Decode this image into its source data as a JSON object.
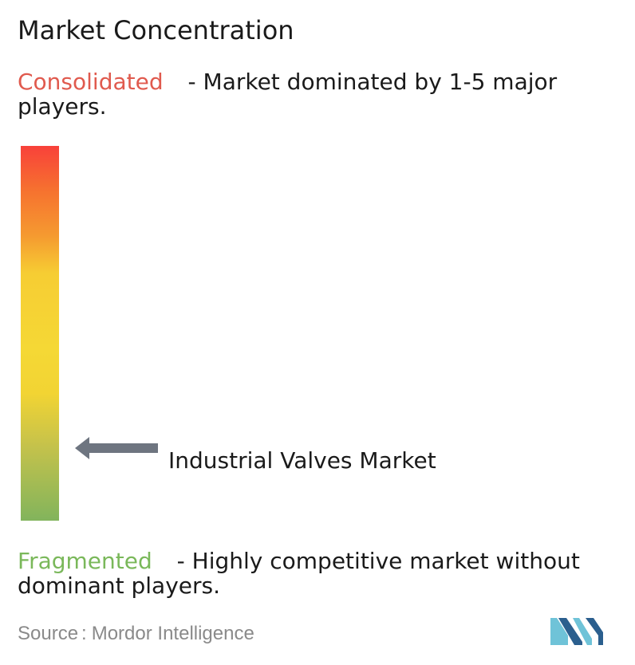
{
  "title": "Market Concentration",
  "consolidated": {
    "label": "Consolidated",
    "description": " - Market dominated by 1-5 major players.",
    "color": "#e05a4e"
  },
  "fragmented": {
    "label": "Fragmented",
    "description": " - Highly competitive market without dominant players.",
    "color": "#7ab85a"
  },
  "chart_data": {
    "type": "gauge",
    "scale": {
      "top": "Consolidated",
      "bottom": "Fragmented",
      "gradient_colors": [
        "#f8413a",
        "#f6722f",
        "#f59a30",
        "#f6cd33",
        "#f5d835",
        "#f2d433",
        "#c5c24b",
        "#82b45c"
      ]
    },
    "marker": {
      "label": "Industrial Valves Market",
      "level": 0.16,
      "level_meaning": "fraction of the scale from Fragmented (0) to Consolidated (1)"
    }
  },
  "source": {
    "label": "Source",
    "separator": ":",
    "value": "Mordor Intelligence"
  },
  "colors": {
    "arrow": "#6e7580",
    "logo_dark": "#2b5f8e",
    "logo_light": "#6fc3d8",
    "source_text": "#8a8a8a"
  },
  "icons": {
    "pointer": "left-arrow-icon",
    "logo": "mordor-intelligence-logo"
  }
}
